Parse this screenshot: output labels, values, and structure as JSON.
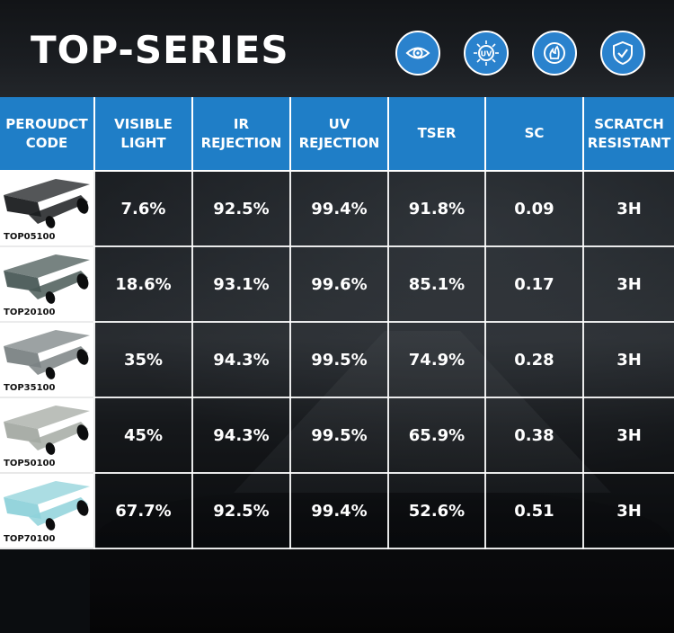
{
  "header": {
    "title": "TOP-SERIES",
    "icons": [
      "eye-icon",
      "uv-icon",
      "heat-icon",
      "shield-check-icon"
    ],
    "badge_color": "#2a82cd"
  },
  "table": {
    "header_color": "#1f7ec7",
    "columns": [
      "PEROUDCT\nCODE",
      "VISIBLE\nLIGHT",
      "IR\nREJECTION",
      "UV\nREJECTION",
      "TSER",
      "SC",
      "SCRATCH\nRESISTANT"
    ],
    "rows": [
      {
        "code": "TOP05100",
        "tint": "#1b1d20",
        "visible_light": "7.6%",
        "ir_rejection": "92.5%",
        "uv_rejection": "99.4%",
        "tser": "91.8%",
        "sc": "0.09",
        "scratch": "3H"
      },
      {
        "code": "TOP20100",
        "tint": "#4a5a57",
        "visible_light": "18.6%",
        "ir_rejection": "93.1%",
        "uv_rejection": "99.6%",
        "tser": "85.1%",
        "sc": "0.17",
        "scratch": "3H"
      },
      {
        "code": "TOP35100",
        "tint": "#7b8384",
        "visible_light": "35%",
        "ir_rejection": "94.3%",
        "uv_rejection": "99.5%",
        "tser": "74.9%",
        "sc": "0.28",
        "scratch": "3H"
      },
      {
        "code": "TOP50100",
        "tint": "#a4aaa3",
        "visible_light": "45%",
        "ir_rejection": "94.3%",
        "uv_rejection": "99.5%",
        "tser": "65.9%",
        "sc": "0.38",
        "scratch": "3H"
      },
      {
        "code": "TOP70100",
        "tint": "#8fd2da",
        "visible_light": "67.7%",
        "ir_rejection": "92.5%",
        "uv_rejection": "99.4%",
        "tser": "52.6%",
        "sc": "0.51",
        "scratch": "3H"
      }
    ]
  }
}
